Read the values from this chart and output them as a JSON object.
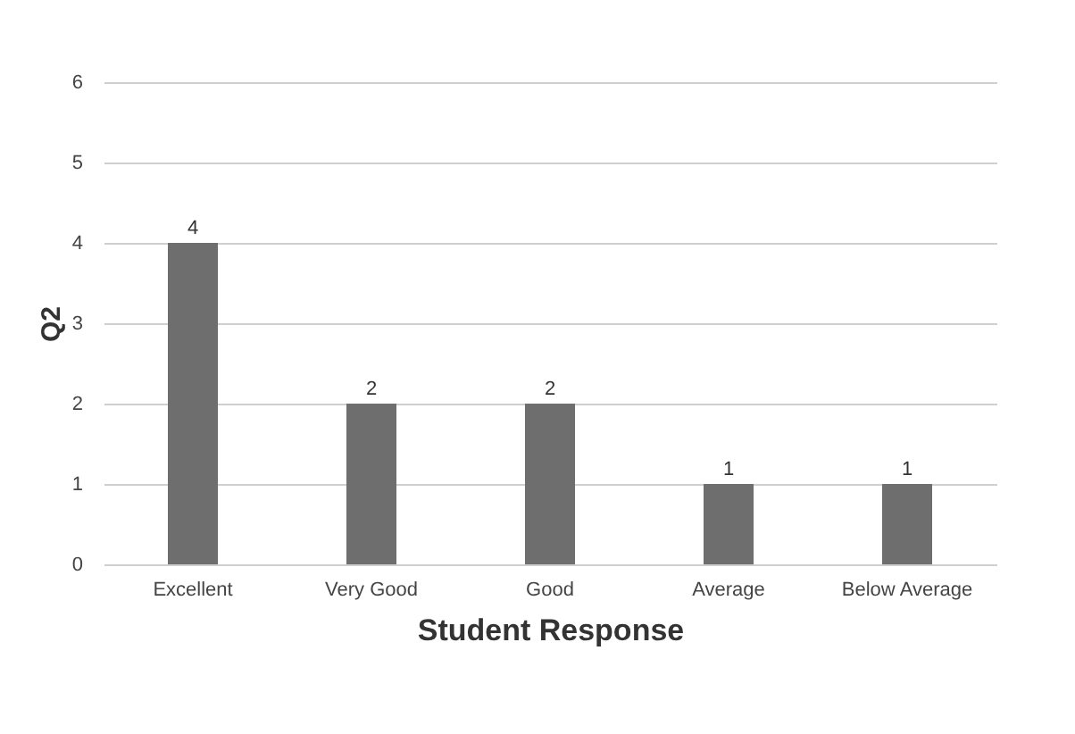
{
  "chart_data": {
    "type": "bar",
    "xlabel": "Student Response",
    "ylabel": "Q2",
    "categories": [
      "Excellent",
      "Very Good",
      "Good",
      "Average",
      "Below Average"
    ],
    "values": [
      4,
      2,
      2,
      1,
      1
    ],
    "color": "#6e6e6e",
    "ylim": [
      0,
      6
    ],
    "yticks": [
      0,
      1,
      2,
      3,
      4,
      5,
      6
    ],
    "grid": "y",
    "data_labels": true
  }
}
